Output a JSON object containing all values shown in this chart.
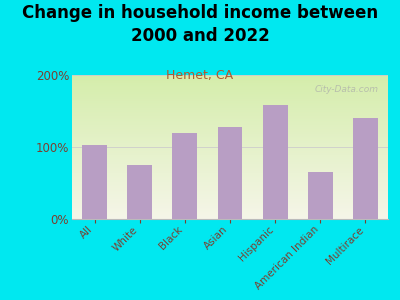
{
  "title": "Change in household income between\n2000 and 2022",
  "subtitle": "Hemet, CA",
  "categories": [
    "All",
    "White",
    "Black",
    "Asian",
    "Hispanic",
    "American Indian",
    "Multirace"
  ],
  "values": [
    103,
    75,
    120,
    128,
    158,
    65,
    140
  ],
  "bar_color": "#b89ec4",
  "title_fontsize": 12,
  "subtitle_fontsize": 9,
  "subtitle_color": "#b05a2f",
  "tick_color": "#7a4030",
  "background_color": "#00e8f0",
  "watermark": "City-Data.com",
  "ylim": [
    0,
    200
  ],
  "yticks": [
    0,
    100,
    200
  ]
}
